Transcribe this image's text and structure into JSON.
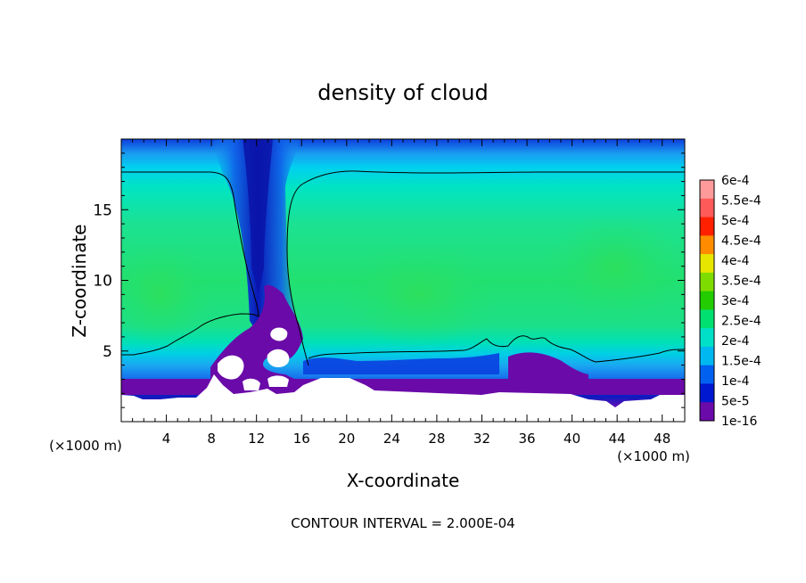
{
  "chart_data": {
    "type": "heatmap",
    "title": "density of cloud",
    "xlabel": "X-coordinate",
    "ylabel": "Z-coordinate",
    "x_unit": "(×1000 m)",
    "y_unit": "(×1000 m)",
    "xlim": [
      0,
      50
    ],
    "ylim": [
      0,
      20
    ],
    "x_ticks": [
      "4",
      "8",
      "12",
      "16",
      "20",
      "24",
      "28",
      "32",
      "36",
      "40",
      "44",
      "48"
    ],
    "y_ticks": [
      "5",
      "10",
      "15"
    ],
    "footer": "CONTOUR INTERVAL = 2.000E-04",
    "colorbar": {
      "labels": [
        "6e-4",
        "5.5e-4",
        "5e-4",
        "4.5e-4",
        "4e-4",
        "3.5e-4",
        "3e-4",
        "2.5e-4",
        "2e-4",
        "1.5e-4",
        "1e-4",
        "5e-5",
        "1e-16"
      ],
      "colors": [
        "#ff9a9a",
        "#ff5a5a",
        "#ff2000",
        "#ff8c00",
        "#e6e600",
        "#7fdc00",
        "#22cc00",
        "#00e070",
        "#00e0c8",
        "#00b8f0",
        "#0060f0",
        "#0018d0",
        "#6a0aa8"
      ]
    },
    "colors": {
      "cloud_core": "#22e080",
      "cloud_edge": "#00d8e8",
      "clear_air": "#0020c0",
      "low_level": "#6a0aa8"
    }
  }
}
